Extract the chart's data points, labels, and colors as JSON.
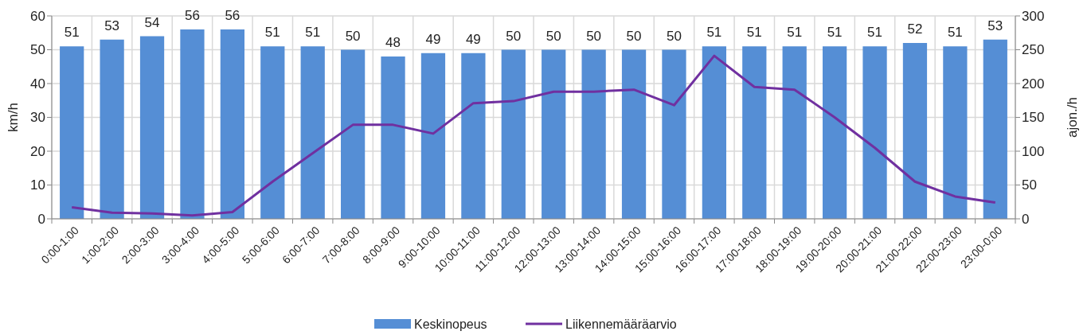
{
  "chart_data": {
    "type": "bar",
    "ylabel": "km/h",
    "y2label": "ajon./h",
    "categories": [
      "0:00-1:00",
      "1:00-2:00",
      "2:00-3:00",
      "3:00-4:00",
      "4:00-5:00",
      "5:00-6:00",
      "6:00-7:00",
      "7:00-8:00",
      "8:00-9:00",
      "9:00-10:00",
      "10:00-11:00",
      "11:00-12:00",
      "12:00-13:00",
      "13:00-14:00",
      "14:00-15:00",
      "15:00-16:00",
      "16:00-17:00",
      "17:00-18:00",
      "18:00-19:00",
      "19:00-20:00",
      "20:00-21:00",
      "21:00-22:00",
      "22:00-23:00",
      "23:00-0:00"
    ],
    "series": [
      {
        "name": "Keskinopeus",
        "color": "#558ed5",
        "values": [
          51,
          53,
          54,
          56,
          56,
          51,
          51,
          50,
          48,
          49,
          49,
          50,
          50,
          50,
          50,
          50,
          51,
          51,
          51,
          51,
          51,
          52,
          51,
          53
        ],
        "value_labels": [
          "51",
          "53",
          "54",
          "56",
          "56",
          "51",
          "51",
          "50",
          "48",
          "49",
          "49",
          "50",
          "50",
          "50",
          "50",
          "50",
          "51",
          "51",
          "51",
          "51",
          "51",
          "52",
          "51",
          "53"
        ]
      },
      {
        "name": "Liikennemääräarvio",
        "type": "line",
        "axis": "y2",
        "color": "#7030a0",
        "values": [
          17,
          9,
          8,
          5,
          10,
          55,
          97,
          139,
          139,
          126,
          171,
          174,
          188,
          188,
          191,
          168,
          241,
          195,
          191,
          150,
          105,
          55,
          33,
          24
        ]
      }
    ],
    "ylim": [
      0,
      60
    ],
    "yticks": [
      0,
      10,
      20,
      30,
      40,
      50,
      60
    ],
    "y2lim": [
      0,
      300
    ],
    "y2ticks": [
      0,
      50,
      100,
      150,
      200,
      250,
      300
    ],
    "grid": true,
    "legend": "bottom",
    "marker": "none",
    "line_style": "solid"
  }
}
